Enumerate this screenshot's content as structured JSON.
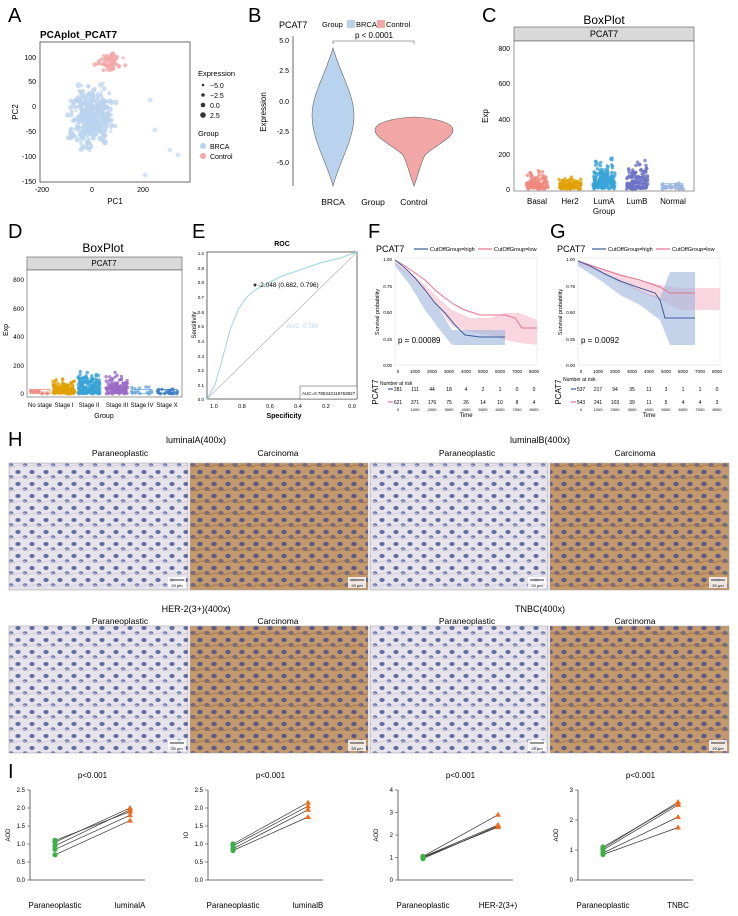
{
  "panels": {
    "A": {
      "letter": "A",
      "title": "PCAplot_PCAT7",
      "xlabel": "PC1",
      "ylabel": "PC2",
      "xticks": [
        "-200",
        "0",
        "200"
      ],
      "yticks": [
        "100",
        "50",
        "0",
        "-50",
        "-100",
        "-150"
      ],
      "legend": {
        "expression_title": "Expression",
        "expression_levels": [
          "−5.0",
          "−2.5",
          "0.0",
          "2.5"
        ],
        "group_title": "Group",
        "groups": [
          "BRCA",
          "Control"
        ],
        "colors": {
          "BRCA": "#b9d3ee",
          "Control": "#f2a7a7"
        }
      }
    },
    "B": {
      "letter": "B",
      "title": "PCAT7",
      "legend_title": "Group",
      "legend_items": [
        "BRCA",
        "Control"
      ],
      "ylabel": "Expression",
      "xlabel": "Group",
      "pvalue": "p < 0.0001",
      "yticks": [
        "5.0",
        "2.5",
        "0.0",
        "-2.5",
        "-5.0"
      ],
      "categories": [
        "BRCA",
        "Control"
      ]
    },
    "C": {
      "letter": "C",
      "title": "BoxPlot",
      "strip": "PCAT7",
      "xlabel": "Group",
      "ylabel": "Exp",
      "yticks": [
        "800",
        "600",
        "400",
        "200",
        "0"
      ],
      "categories": [
        "Basal",
        "Her2",
        "LumA",
        "LumB",
        "Normal"
      ]
    },
    "D": {
      "letter": "D",
      "title": "BoxPlot",
      "strip": "PCAT7",
      "xlabel": "Group",
      "ylabel": "Exp",
      "yticks": [
        "800",
        "600",
        "400",
        "200",
        "0"
      ],
      "categories": [
        "No stage",
        "Stage I",
        "Stage II",
        "Stage III",
        "Stage IV",
        "Stage X"
      ]
    },
    "E": {
      "letter": "E",
      "title": "ROC",
      "xlabel": "Specificity",
      "ylabel": "Sensitivity",
      "xticks": [
        "1.0",
        "0.8",
        "0.6",
        "0.4",
        "0.2",
        "0.0"
      ],
      "yticks": [
        "1.0",
        "0.9",
        "0.8",
        "0.7",
        "0.6",
        "0.5",
        "0.4",
        "0.3",
        "0.2",
        "0.1",
        "0.0"
      ],
      "threshold": "-2.048 (0.682, 0.796)",
      "auc_inside": "AUC: 0.785",
      "auc_box": "AUC=0.785342118763827"
    },
    "F": {
      "letter": "F",
      "title": "PCAT7",
      "legend": [
        "CutOffGroup=high",
        "CutOffGroup=low"
      ],
      "ylabel": "Survival probability",
      "xlabel": "Time",
      "pvalue": "p = 0.00089",
      "risk_title": "Number at risk",
      "risk_ylabel": "PCAT7",
      "xticks": [
        "0",
        "1000",
        "2000",
        "3000",
        "4000",
        "5000",
        "6000",
        "7000",
        "8000"
      ],
      "yticks": [
        "1.00",
        "0.75",
        "0.50",
        "0.25",
        "0.00"
      ],
      "risk_high": [
        "281",
        "111",
        "44",
        "18",
        "4",
        "2",
        "1",
        "0",
        "0"
      ],
      "risk_low": [
        "621",
        "371",
        "176",
        "75",
        "26",
        "14",
        "10",
        "8",
        "4"
      ]
    },
    "G": {
      "letter": "G",
      "title": "PCAT7",
      "legend": [
        "CutOffGroup=high",
        "CutOffGroup=low"
      ],
      "ylabel": "Survival probability",
      "xlabel": "Time",
      "pvalue": "p = 0.0092",
      "risk_title": "Number at risk",
      "risk_ylabel": "PCAT7",
      "xticks": [
        "0",
        "1000",
        "2000",
        "3000",
        "4000",
        "5000",
        "6000",
        "7000",
        "8000"
      ],
      "yticks": [
        "1.00",
        "0.75",
        "0.50",
        "0.25",
        "0.00"
      ],
      "risk_high": [
        "537",
        "217",
        "94",
        "35",
        "11",
        "3",
        "1",
        "1",
        "0"
      ],
      "risk_low": [
        "543",
        "241",
        "103",
        "39",
        "11",
        "5",
        "4",
        "4",
        "3"
      ]
    },
    "H": {
      "letter": "H",
      "groups": [
        {
          "title": "luminalA(400x)",
          "left": "Paraneoplastic",
          "right": "Carcinoma"
        },
        {
          "title": "luminalB(400x)",
          "left": "Paraneoplastic",
          "right": "Carcinoma"
        },
        {
          "title": "HER-2(3+)(400x)",
          "left": "Paraneoplastic",
          "right": "Carcinoma"
        },
        {
          "title": "TNBC(400x)",
          "left": "Paraneoplastic",
          "right": "Carcinoma"
        }
      ],
      "scalebar": "20 μm"
    },
    "I": {
      "letter": "I"
    }
  },
  "chart_data": [
    {
      "panel": "I1",
      "type": "scatter",
      "pvalue": "p<0.001",
      "ylabel": "AOD",
      "categories": [
        "Paraneoplastic",
        "luminalA"
      ],
      "yticks": [
        "2.5",
        "2.0",
        "1.5",
        "1.0",
        "0.5",
        "0.0"
      ],
      "ylim": [
        0,
        2.5
      ],
      "pairs": [
        [
          0.7,
          1.65
        ],
        [
          0.85,
          1.8
        ],
        [
          0.95,
          1.95
        ],
        [
          1.05,
          2.0
        ],
        [
          1.1,
          1.9
        ]
      ]
    },
    {
      "panel": "I2",
      "type": "scatter",
      "pvalue": "p<0.001",
      "ylabel": "IO",
      "categories": [
        "Paraneoplastic",
        "luminalB"
      ],
      "yticks": [
        "2.5",
        "2.0",
        "1.5",
        "1.0",
        "0.5",
        "0.0"
      ],
      "ylim": [
        0,
        2.5
      ],
      "pairs": [
        [
          0.82,
          1.75
        ],
        [
          0.87,
          1.95
        ],
        [
          0.95,
          2.05
        ],
        [
          1.0,
          2.15
        ]
      ]
    },
    {
      "panel": "I3",
      "type": "scatter",
      "pvalue": "p<0.001",
      "ylabel": "AOD",
      "categories": [
        "Paraneoplastic",
        "HER-2(3+)"
      ],
      "yticks": [
        "4",
        "3",
        "2",
        "1",
        "0"
      ],
      "ylim": [
        0,
        4
      ],
      "pairs": [
        [
          0.95,
          2.4
        ],
        [
          1.0,
          2.35
        ],
        [
          1.02,
          2.45
        ],
        [
          1.05,
          2.9
        ]
      ]
    },
    {
      "panel": "I4",
      "type": "scatter",
      "pvalue": "p<0.001",
      "ylabel": "AOD",
      "categories": [
        "Paraneoplastic",
        "TNBC"
      ],
      "yticks": [
        "3",
        "2",
        "1",
        "0"
      ],
      "ylim": [
        0,
        3
      ],
      "pairs": [
        [
          0.85,
          1.75
        ],
        [
          0.9,
          2.1
        ],
        [
          1.0,
          2.5
        ],
        [
          1.05,
          2.6
        ],
        [
          1.1,
          2.55
        ]
      ]
    }
  ]
}
